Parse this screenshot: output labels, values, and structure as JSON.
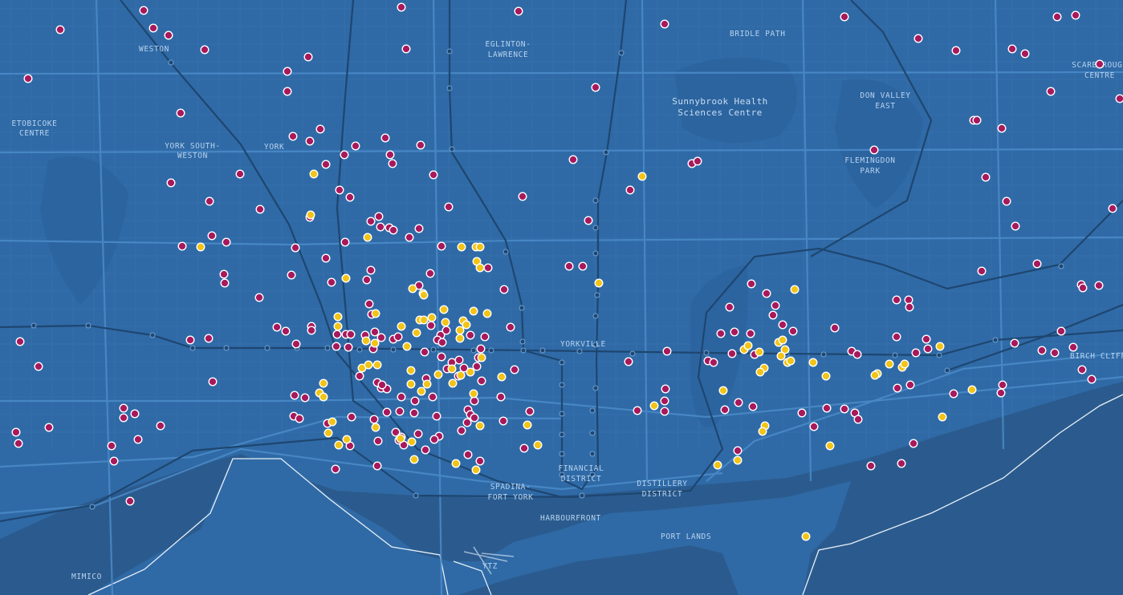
{
  "map": {
    "colors": {
      "land": "#2f6aa6",
      "water": "#2b5b8e",
      "street": "#3b78b6",
      "arterial": "#4a8ac7",
      "transit": "#1f456d",
      "shoreline": "#e8f0f8",
      "marker_magenta": "#a8195c",
      "marker_yellow": "#f2c418",
      "marker_stroke": "#ffffff"
    },
    "labels": [
      {
        "id": "weston",
        "lines": [
          "WESTON"
        ]
      },
      {
        "id": "etobicoke-centre",
        "lines": [
          "ETOBICOKE",
          "CENTRE"
        ]
      },
      {
        "id": "york-south-weston",
        "lines": [
          "YORK SOUTH-",
          "WESTON"
        ]
      },
      {
        "id": "york",
        "lines": [
          "YORK"
        ]
      },
      {
        "id": "eglinton-lawrence",
        "lines": [
          "EGLINTON-",
          "LAWRENCE"
        ]
      },
      {
        "id": "bridle-path",
        "lines": [
          "BRIDLE PATH"
        ]
      },
      {
        "id": "sunnybrook",
        "lines": [
          "Sunnybrook Health",
          "Sciences Centre"
        ]
      },
      {
        "id": "don-valley-east",
        "lines": [
          "DON VALLEY",
          "EAST"
        ]
      },
      {
        "id": "flemingdon-park",
        "lines": [
          "FLEMINGDON",
          "PARK"
        ]
      },
      {
        "id": "scarborough-centre",
        "lines": [
          "SCARBOROUGH",
          "CENTRE"
        ]
      },
      {
        "id": "yorkville",
        "lines": [
          "YORKVILLE"
        ]
      },
      {
        "id": "birch-cliff",
        "lines": [
          "BIRCH CLIFF"
        ]
      },
      {
        "id": "financial-district",
        "lines": [
          "FINANCIAL",
          "DISTRICT"
        ]
      },
      {
        "id": "distillery-district",
        "lines": [
          "DISTILLERY",
          "DISTRICT"
        ]
      },
      {
        "id": "spadina-fort-york",
        "lines": [
          "SPADINA-",
          "FORT YORK"
        ]
      },
      {
        "id": "harbourfront",
        "lines": [
          "HARBOURFRONT"
        ]
      },
      {
        "id": "port-lands",
        "lines": [
          "PORT LANDS"
        ]
      },
      {
        "id": "ytz",
        "lines": [
          "YTZ"
        ]
      },
      {
        "id": "mimico",
        "lines": [
          "MIMICO"
        ]
      }
    ]
  }
}
